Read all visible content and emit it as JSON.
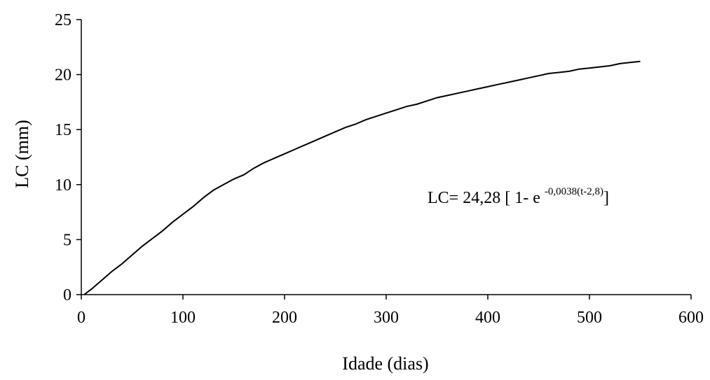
{
  "chart_data": {
    "type": "line",
    "title": "",
    "xlabel": "Idade (dias)",
    "ylabel": "LC (mm)",
    "xlim": [
      0,
      600
    ],
    "ylim": [
      0,
      25
    ],
    "xticks": [
      "0",
      "100",
      "200",
      "300",
      "400",
      "500",
      "600"
    ],
    "yticks": [
      "0",
      "5",
      "10",
      "15",
      "20",
      "25"
    ],
    "grid": false,
    "legend": "none",
    "line_color": "#000000",
    "annotation": {
      "main": "LC= 24,28 [ 1- e ",
      "exponent": "-0,0038(t-2,8)",
      "close": "]"
    },
    "series": [
      {
        "x": [
          2.8,
          10,
          20,
          30,
          40,
          50,
          60,
          70,
          80,
          90,
          100,
          110,
          120,
          130,
          140,
          150,
          160,
          170,
          180,
          190,
          200,
          210,
          220,
          230,
          240,
          250,
          260,
          270,
          280,
          290,
          300,
          310,
          320,
          330,
          340,
          350,
          360,
          370,
          380,
          390,
          400,
          410,
          420,
          430,
          440,
          450,
          460,
          470,
          480,
          490,
          500,
          510,
          520,
          530,
          540,
          550
        ],
        "y": [
          0.0,
          0.5,
          1.3,
          2.1,
          2.8,
          3.6,
          4.4,
          5.1,
          5.8,
          6.6,
          7.3,
          8.0,
          8.8,
          9.5,
          10.0,
          10.5,
          10.9,
          11.5,
          12.0,
          12.4,
          12.8,
          13.2,
          13.6,
          14.0,
          14.4,
          14.8,
          15.2,
          15.5,
          15.9,
          16.2,
          16.5,
          16.8,
          17.1,
          17.3,
          17.6,
          17.9,
          18.1,
          18.3,
          18.5,
          18.7,
          18.9,
          19.1,
          19.3,
          19.5,
          19.7,
          19.9,
          20.1,
          20.2,
          20.3,
          20.5,
          20.6,
          20.7,
          20.8,
          21.0,
          21.1,
          21.2
        ]
      }
    ]
  }
}
